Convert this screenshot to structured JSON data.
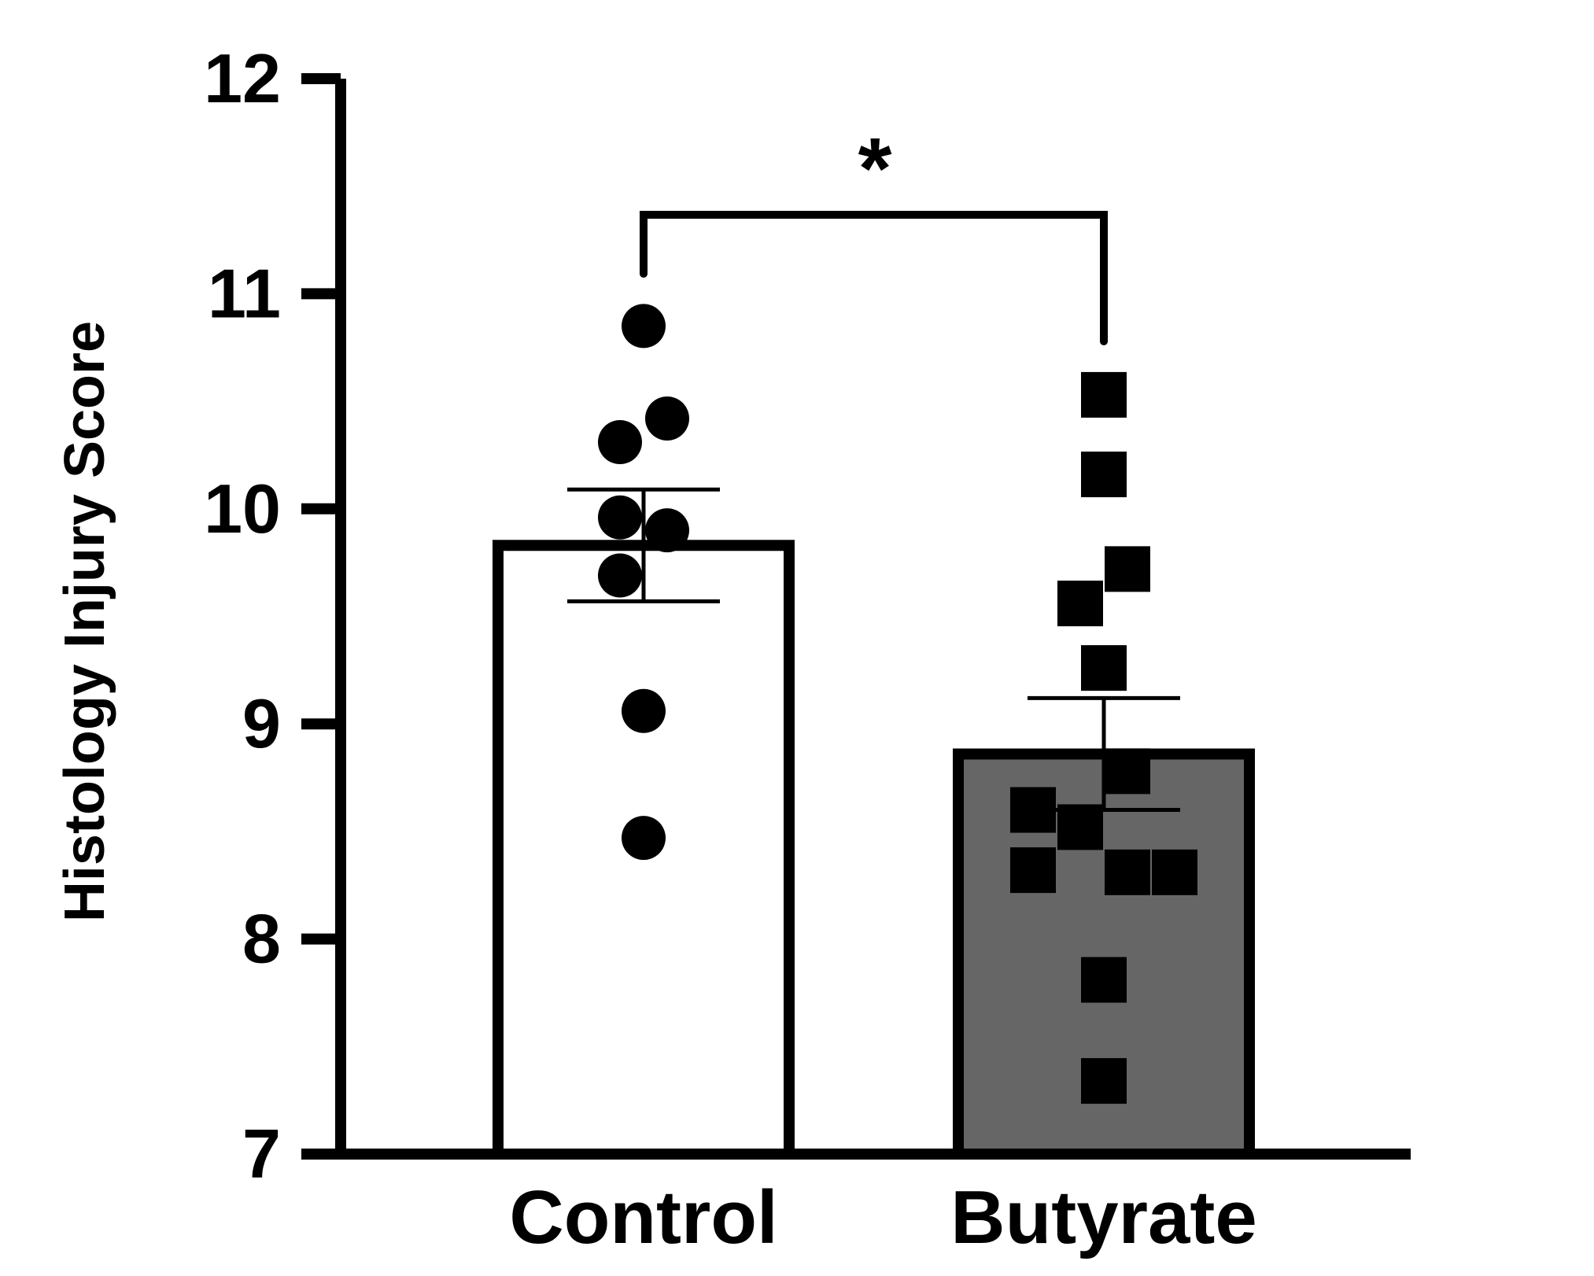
{
  "chart_data": {
    "type": "bar",
    "title": "",
    "xlabel": "",
    "ylabel": "Histology Injury Score",
    "ylim": [
      7,
      12
    ],
    "yticks": [
      "7",
      "8",
      "9",
      "10",
      "11",
      "12"
    ],
    "grid": false,
    "categories": [
      "Control",
      "Butyrate"
    ],
    "series": [
      {
        "values": [
          9.83,
          8.86
        ],
        "error": [
          0.26,
          0.26
        ],
        "colors": [
          "#ffffff",
          "#666666"
        ],
        "marker": [
          "circle",
          "square"
        ]
      }
    ],
    "points": [
      {
        "category": "Control",
        "marker": "circle",
        "values": [
          10.85,
          10.42,
          10.31,
          9.96,
          9.9,
          9.69,
          9.06,
          8.47
        ],
        "offsets": [
          0,
          1,
          -1,
          -1,
          1,
          -1,
          0,
          0
        ]
      },
      {
        "category": "Butyrate",
        "marker": "square",
        "values": [
          10.53,
          10.16,
          9.72,
          9.56,
          9.26,
          8.78,
          8.6,
          8.52,
          8.32,
          8.31,
          8.31,
          7.81,
          7.34
        ],
        "offsets": [
          0,
          0,
          1,
          -1,
          0,
          1,
          -3,
          -1,
          -3,
          1,
          3,
          0,
          0
        ]
      }
    ],
    "significance": {
      "label": "*",
      "between": [
        "Control",
        "Butyrate"
      ]
    }
  }
}
